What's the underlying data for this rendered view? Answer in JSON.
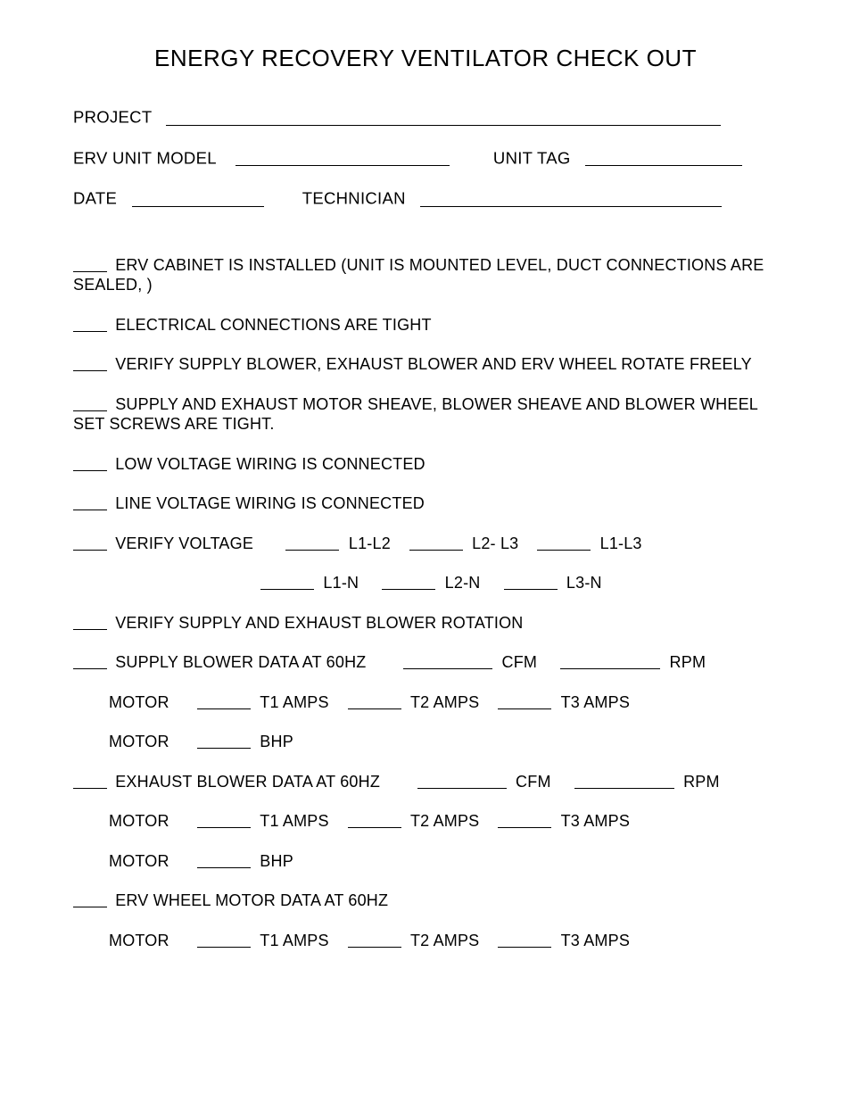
{
  "title": "ENERGY RECOVERY VENTILATOR CHECK OUT",
  "header": {
    "project_label": "PROJECT",
    "erv_model_label": "ERV UNIT MODEL",
    "unit_tag_label": "UNIT TAG",
    "date_label": "DATE",
    "technician_label": "TECHNICIAN"
  },
  "blank_widths": {
    "project": 622,
    "erv_model": 240,
    "unit_tag": 176,
    "date": 148,
    "technician": 338,
    "check": 38,
    "voltage_pre": 60,
    "voltage_pair": 60,
    "cfm": 100,
    "rpm": 112,
    "amps": 60,
    "bhp": 60
  },
  "items": {
    "i1": "ERV CABINET IS INSTALLED (UNIT IS MOUNTED LEVEL, DUCT CONNECTIONS ARE SEALED, )",
    "i2": "ELECTRICAL CONNECTIONS ARE TIGHT",
    "i3": "VERIFY SUPPLY BLOWER, EXHAUST BLOWER AND ERV WHEEL ROTATE FREELY",
    "i4": "SUPPLY AND EXHAUST MOTOR SHEAVE, BLOWER SHEAVE AND BLOWER WHEEL SET SCREWS ARE TIGHT.",
    "i5": "LOW VOLTAGE WIRING IS CONNECTED",
    "i6": "LINE VOLTAGE WIRING IS CONNECTED",
    "i7_label": "VERIFY VOLTAGE",
    "i7_l1l2": "L1-L2",
    "i7_l2l3": "L2- L3",
    "i7_l1l3": "L1-L3",
    "i7b_l1n": "L1-N",
    "i7b_l2n": "L2-N",
    "i7b_l3n": "L3-N",
    "i8": "VERIFY SUPPLY AND EXHAUST BLOWER ROTATION",
    "i9_label": "SUPPLY BLOWER  DATA AT 60HZ",
    "cfm": "CFM",
    "rpm": "RPM",
    "motor": "MOTOR",
    "t1": "T1 AMPS",
    "t2": "T2 AMPS",
    "t3": "T3 AMPS",
    "bhp": "BHP",
    "i10_label": "EXHAUST BLOWER  DATA AT 60HZ",
    "i11_label": "ERV WHEEL MOTOR  DATA AT 60HZ"
  },
  "colors": {
    "text": "#000000",
    "background": "#ffffff",
    "underline": "#000000"
  },
  "typography": {
    "title_fontsize": 26,
    "header_fontsize": 18.5,
    "body_fontsize": 18,
    "font_family": "Arial"
  }
}
